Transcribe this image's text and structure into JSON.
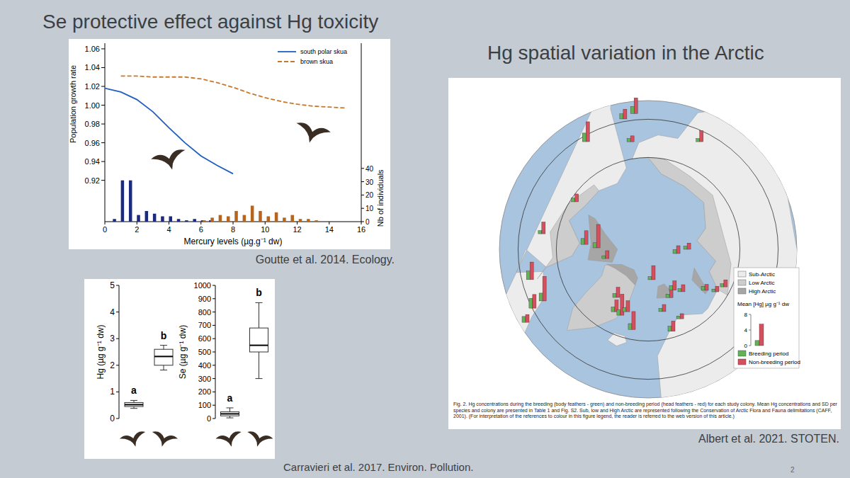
{
  "slide": {
    "title": "Se protective effect against Hg toxicity",
    "page_number": 2
  },
  "chart_data": [
    {
      "type": "line",
      "source": "Goutte et al. 2014. Ecology.",
      "x_label": "Mercury levels (µg.g⁻¹ dw)",
      "y_label": "Population growth rate",
      "y2_label": "Nb of individuals",
      "xlim": [
        0,
        16
      ],
      "xticks": [
        0,
        2,
        4,
        6,
        8,
        10,
        12,
        14,
        16
      ],
      "ylim": [
        0.876,
        1.066
      ],
      "yticks": [
        0.92,
        0.94,
        0.96,
        0.98,
        {
          "value": 1,
          "label": "1.00"
        },
        1.02,
        1.04,
        1.06
      ],
      "y2lim": [
        0,
        134
      ],
      "y2ticks": [
        0,
        10,
        20,
        30,
        40
      ],
      "grid": false,
      "legend": "top-right",
      "series": [
        {
          "type": "bar",
          "axis": "y2",
          "color": "#1b2a80",
          "x": [
            0.6,
            1.1,
            1.6,
            2.1,
            2.6,
            3.1,
            3.6,
            4.1,
            4.6,
            5.1,
            5.6,
            6.1,
            6.6
          ],
          "values": [
            2,
            31,
            31,
            5,
            8,
            6,
            4,
            4,
            2,
            1,
            2,
            1,
            1
          ]
        },
        {
          "type": "bar",
          "axis": "y2",
          "color": "#b5651d",
          "x": [
            6.2,
            6.7,
            7.2,
            7.7,
            8.2,
            8.7,
            9.2,
            9.7,
            10.2,
            10.7,
            11.2,
            11.7,
            12.2,
            12.7,
            13.2
          ],
          "values": [
            1,
            3,
            5,
            4,
            8,
            5,
            12,
            8,
            4,
            7,
            3,
            5,
            2,
            2,
            1
          ]
        },
        {
          "type": "line",
          "name": "south polar skua",
          "color": "#1f5fc0",
          "line_style": "solid",
          "x": [
            0,
            1,
            2,
            3,
            4,
            5,
            6,
            7,
            8
          ],
          "values": [
            1.018,
            1.014,
            1.006,
            0.993,
            0.976,
            0.96,
            0.946,
            0.936,
            0.927
          ]
        },
        {
          "type": "line",
          "name": "brown skua",
          "color": "#c8782a",
          "line_style": "dashed",
          "x": [
            1,
            2,
            3,
            4,
            5,
            6,
            7,
            8,
            9,
            10,
            11,
            12,
            13,
            14,
            15
          ],
          "values": [
            1.031,
            1.031,
            1.03,
            1.03,
            1.03,
            1.028,
            1.024,
            1.019,
            1.013,
            1.008,
            1.004,
            1.001,
            0.999,
            0.998,
            0.997
          ]
        }
      ]
    },
    {
      "type": "box",
      "source": "Carravieri et al. 2017. Environ. Pollution.",
      "y_label": "Hg (µg g⁻¹ dw)",
      "categories": [
        null,
        null
      ],
      "ylim": [
        0,
        5
      ],
      "yticks": [
        0,
        1,
        2,
        3,
        4,
        5
      ],
      "annotations": [
        "a",
        "b"
      ],
      "whisker_low": [
        0.38,
        1.82
      ],
      "q1": [
        0.45,
        2.0
      ],
      "median": [
        0.52,
        2.33
      ],
      "q3": [
        0.6,
        2.6
      ],
      "whisker_high": [
        0.68,
        2.75
      ]
    },
    {
      "type": "box",
      "y_label": "Se (µg g⁻¹ dw)",
      "categories": [
        null,
        null
      ],
      "ylim": [
        0,
        1000
      ],
      "yticks": [
        0,
        100,
        200,
        300,
        400,
        500,
        600,
        700,
        800,
        900,
        1000
      ],
      "annotations": [
        "a",
        "b"
      ],
      "whisker_low": [
        5,
        300
      ],
      "q1": [
        20,
        500
      ],
      "median": [
        35,
        550
      ],
      "q3": [
        50,
        680
      ],
      "whisker_high": [
        80,
        870
      ]
    },
    {
      "type": "map",
      "title": "Hg spatial variation in the Arctic",
      "source": "Albert et al. 2021. STOTEN.",
      "caption": "Fig. 2. Hg concentrations during the breeding (body feathers - green) and non-breeding period (head feathers - red) for each study colony. Mean Hg concentrations and SD per species and colony are presented in Table 1 and Fig. S2. Sub, low and High Arctic are represented following the Conservation of Arctic Flora and Fauna delimitations (CAFF, 2001). (For interpretation of the references to colour in this figure legend, the reader is referred to the web version of this article.)",
      "legend": "right",
      "legend_title": "Mean [Hg] µg g⁻¹ dw",
      "ylim": [
        0,
        8
      ],
      "yticks": [
        0,
        4,
        8
      ],
      "legend_values": [
        1.3,
        5.5
      ],
      "zones": [
        {
          "name": "Sub-Arctic",
          "color": "#ececec"
        },
        {
          "name": "Low Arctic",
          "color": "#cdcdcd"
        },
        {
          "name": "High Arctic",
          "color": "#a6a6a6"
        }
      ],
      "lat": [
        57.5,
        55.3,
        54.3,
        61.5,
        58.8,
        58.1,
        61.9,
        67.2,
        73.3,
        76.5,
        78.6,
        52.7,
        56.1,
        59.3,
        71.5,
        71.3,
        72.7,
        74.9,
        68.6,
        73.3,
        76.2,
        82.0,
        77.5,
        75.9,
        79.8,
        82.5,
        71.7,
        69.2,
        67.9,
        67.7,
        70.0
      ],
      "lon": [
        -150,
        -169.2,
        -174.1,
        -170.7,
        154.4,
        -75.6,
        -98.3,
        -123,
        -94.4,
        -91.6,
        -77.8,
        -59.2,
        -63,
        -63.9,
        -28.1,
        -22.8,
        -19.4,
        -33.5,
        -11.5,
        12.8,
        23.8,
        6.6,
        31.1,
        38.1,
        90,
        81.5,
        54.1,
        57.7,
        63.6,
        15.9,
        24.7
      ],
      "series": [
        {
          "name": "Breeding period",
          "color": "#62b356",
          "values": [
            2.2,
            1.3,
            1.8,
            0.8,
            0.8,
            2.2,
            0.8,
            1.0,
            1.5,
            1.3,
            0.7,
            1.5,
            2.5,
            2.0,
            1.2,
            1.4,
            1.0,
            1.0,
            1.5,
            0.8,
            0.9,
            0.8,
            1.2,
            0.8,
            0.8,
            1.0,
            1.0,
            0.7,
            0.8,
            1.3,
            0.7
          ]
        },
        {
          "name": "Non-breeding period",
          "color": "#d64f5e",
          "values": [
            5.1,
            2.5,
            4.0,
            1.5,
            2.8,
            4.5,
            3.0,
            2.0,
            3.5,
            6.0,
            2.0,
            2.0,
            3.5,
            6.3,
            3.0,
            5.4,
            2.8,
            2.6,
            4.6,
            1.8,
            2.2,
            3.6,
            2.4,
            1.8,
            1.6,
            2.0,
            1.5,
            1.4,
            1.8,
            2.6,
            1.3
          ]
        }
      ]
    }
  ]
}
